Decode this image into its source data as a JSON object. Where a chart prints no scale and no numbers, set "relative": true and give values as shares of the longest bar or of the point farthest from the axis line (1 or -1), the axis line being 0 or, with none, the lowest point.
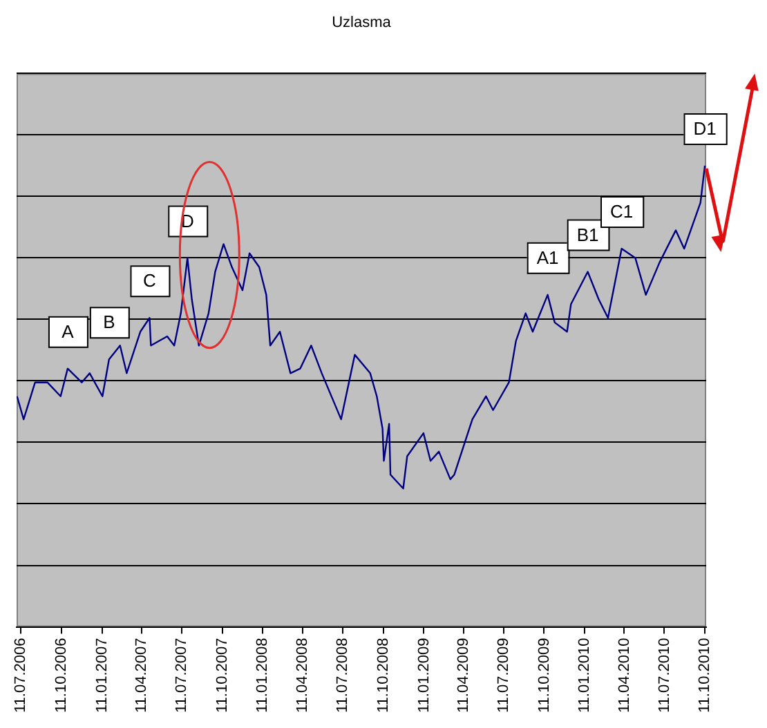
{
  "chart_data": {
    "type": "line",
    "title": "Uzlasma",
    "relative": true,
    "grid": "y",
    "legend": false,
    "marker": "none",
    "x": [
      "2006-07-02",
      "2006-07-17",
      "2006-08-12",
      "2006-09-09",
      "2006-10-09",
      "2006-10-25",
      "2006-11-26",
      "2006-12-14",
      "2007-01-12",
      "2007-01-27",
      "2007-02-21",
      "2007-03-08",
      "2007-04-08",
      "2007-04-29",
      "2007-05-02",
      "2007-06-08",
      "2007-06-24",
      "2007-07-09",
      "2007-07-24",
      "2007-08-03",
      "2007-08-19",
      "2007-09-10",
      "2007-09-25",
      "2007-10-14",
      "2007-11-02",
      "2007-11-26",
      "2007-12-12",
      "2008-01-03",
      "2008-01-19",
      "2008-01-28",
      "2008-02-19",
      "2008-03-14",
      "2008-04-05",
      "2008-04-30",
      "2008-05-24",
      "2008-07-07",
      "2008-08-07",
      "2008-09-11",
      "2008-09-26",
      "2008-10-09",
      "2008-10-12",
      "2008-10-24",
      "2008-10-27",
      "2008-11-25",
      "2008-12-04",
      "2009-01-10",
      "2009-01-26",
      "2009-02-14",
      "2009-03-12",
      "2009-03-21",
      "2009-05-01",
      "2009-06-01",
      "2009-06-17",
      "2009-07-23",
      "2009-08-08",
      "2009-08-30",
      "2009-09-15",
      "2009-10-19",
      "2009-11-04",
      "2009-12-02",
      "2009-12-11",
      "2010-01-18",
      "2010-02-12",
      "2010-03-05",
      "2010-04-05",
      "2010-05-06",
      "2010-05-30",
      "2010-06-30",
      "2010-08-06",
      "2010-08-25",
      "2010-10-01",
      "2010-10-11"
    ],
    "series": [
      {
        "color": "#000080",
        "values": [
          0.5,
          0.45,
          0.53,
          0.53,
          0.5,
          0.56,
          0.53,
          0.55,
          0.5,
          0.58,
          0.61,
          0.55,
          0.64,
          0.67,
          0.61,
          0.63,
          0.61,
          0.68,
          0.8,
          0.71,
          0.61,
          0.68,
          0.77,
          0.83,
          0.78,
          0.73,
          0.81,
          0.78,
          0.72,
          0.61,
          0.64,
          0.55,
          0.56,
          0.61,
          0.55,
          0.45,
          0.59,
          0.55,
          0.5,
          0.43,
          0.36,
          0.44,
          0.33,
          0.3,
          0.37,
          0.42,
          0.36,
          0.38,
          0.32,
          0.33,
          0.45,
          0.5,
          0.47,
          0.53,
          0.62,
          0.68,
          0.64,
          0.72,
          0.66,
          0.64,
          0.7,
          0.77,
          0.71,
          0.67,
          0.82,
          0.8,
          0.72,
          0.79,
          0.86,
          0.82,
          0.92,
          1
        ]
      }
    ],
    "xlim": [
      "2006-07-01",
      "2010-10-14"
    ],
    "xticks": [
      {
        "value": "2006-07-11",
        "label": "11.07.2006"
      },
      {
        "value": "2006-10-11",
        "label": "11.10.2006"
      },
      {
        "value": "2007-01-11",
        "label": "11.01.2007"
      },
      {
        "value": "2007-04-11",
        "label": "11.04.2007"
      },
      {
        "value": "2007-07-11",
        "label": "11.07.2007"
      },
      {
        "value": "2007-10-11",
        "label": "11.10.2007"
      },
      {
        "value": "2008-01-11",
        "label": "11.01.2008"
      },
      {
        "value": "2008-04-11",
        "label": "11.04.2008"
      },
      {
        "value": "2008-07-11",
        "label": "11.07.2008"
      },
      {
        "value": "2008-10-11",
        "label": "11.10.2008"
      },
      {
        "value": "2009-01-11",
        "label": "11.01.2009"
      },
      {
        "value": "2009-04-11",
        "label": "11.04.2009"
      },
      {
        "value": "2009-07-11",
        "label": "11.07.2009"
      },
      {
        "value": "2009-10-11",
        "label": "11.10.2009"
      },
      {
        "value": "2010-01-11",
        "label": "11.01.2010"
      },
      {
        "value": "2010-04-11",
        "label": "11.04.2010"
      },
      {
        "value": "2010-07-11",
        "label": "11.07.2010"
      },
      {
        "value": "2010-10-11",
        "label": "11.10.2010"
      }
    ],
    "annotations": [
      {
        "text": "A",
        "x": "2006-10-25",
        "y": 0.56
      },
      {
        "text": "B",
        "x": "2007-01-27",
        "y": 0.58
      },
      {
        "text": "C",
        "x": "2007-04-29",
        "y": 0.67
      },
      {
        "text": "D",
        "x": "2007-07-24",
        "y": 0.8
      },
      {
        "text": "A1",
        "x": "2009-10-19",
        "y": 0.72
      },
      {
        "text": "B1",
        "x": "2010-01-18",
        "y": 0.77
      },
      {
        "text": "C1",
        "x": "2010-04-05",
        "y": 0.82
      },
      {
        "text": "D1",
        "x": "2010-10-11",
        "y": 1
      }
    ]
  }
}
